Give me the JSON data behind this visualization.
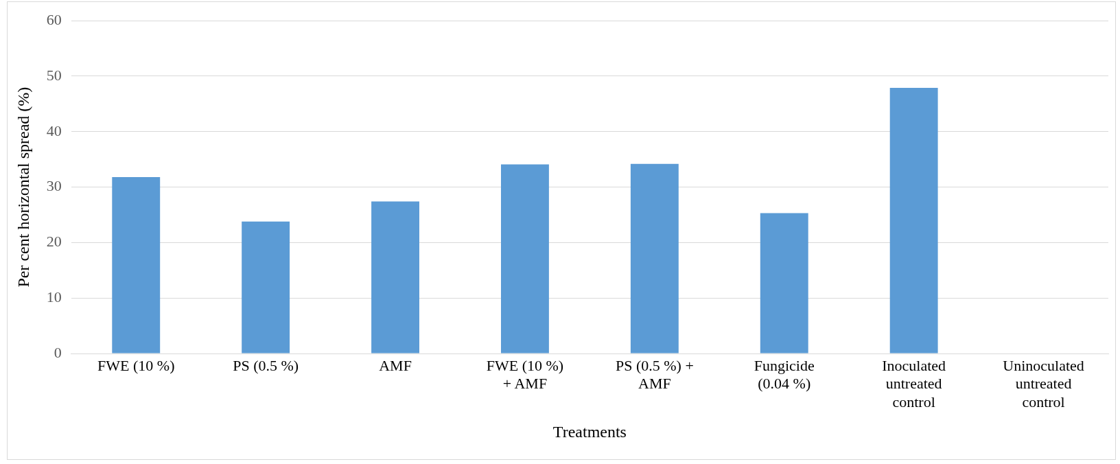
{
  "chart_data": {
    "type": "bar",
    "xlabel": "Treatments",
    "ylabel": "Per cent horizontal spread (%)",
    "categories": [
      "FWE (10 %)",
      "PS (0.5 %)",
      "AMF",
      "FWE (10 %) + AMF",
      "PS (0.5 %) + AMF",
      "Fungicide (0.04 %)",
      "Inoculated untreated control",
      "Uninoculated untreated control"
    ],
    "values": [
      31.8,
      23.8,
      27.4,
      34.1,
      34.2,
      25.3,
      47.9,
      0
    ],
    "color": "#5b9bd5",
    "ylim": [
      0,
      60
    ],
    "yticks": [
      0,
      10,
      20,
      30,
      40,
      50,
      60
    ],
    "grid": "y",
    "legend": false
  }
}
